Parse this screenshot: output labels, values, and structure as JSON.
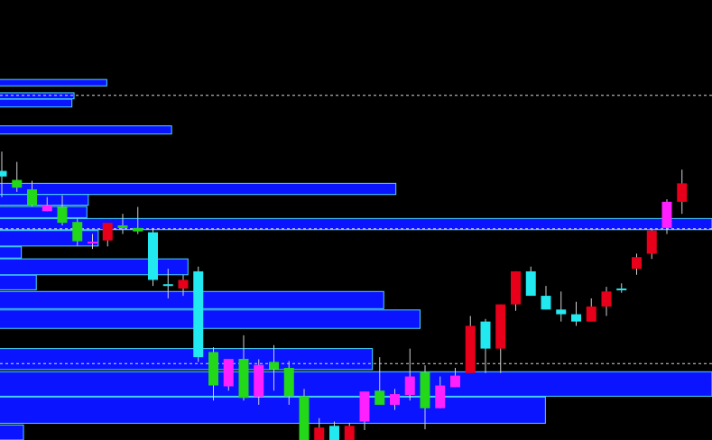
{
  "colors": {
    "background": "#000000",
    "volume_profile_fill": "#0a14ff",
    "volume_profile_edge": "#48d8ff",
    "bull_color": "#e8001a",
    "bull_alt_color": "#ff20ff",
    "bear_color": "#22d818",
    "bear_alt_color": "#22e8f0",
    "wick": "#d0d0d0",
    "level_line": "#ffffff"
  },
  "chart_data": {
    "type": "candlestick",
    "title": "",
    "xlabel": "",
    "ylabel": "",
    "ylim": [
      0,
      100
    ],
    "grid": false,
    "legend": "none",
    "levels": [
      80.3,
      49.2,
      17.8
    ],
    "volume_profile": [
      {
        "low": 82.5,
        "high": 84.0,
        "volume": 15.0
      },
      {
        "low": 79.5,
        "high": 80.9,
        "volume": 10.4
      },
      {
        "low": 77.6,
        "high": 79.4,
        "volume": 10.1
      },
      {
        "low": 71.3,
        "high": 73.2,
        "volume": 24.1
      },
      {
        "low": 57.2,
        "high": 59.8,
        "volume": 55.6
      },
      {
        "low": 54.7,
        "high": 57.2,
        "volume": 12.4
      },
      {
        "low": 51.8,
        "high": 54.4,
        "volume": 12.2
      },
      {
        "low": 49.0,
        "high": 51.6,
        "volume": 100.0
      },
      {
        "low": 45.2,
        "high": 48.8,
        "volume": 13.8
      },
      {
        "low": 42.4,
        "high": 45.0,
        "volume": 3.0
      },
      {
        "low": 38.5,
        "high": 42.2,
        "volume": 26.4
      },
      {
        "low": 35.0,
        "high": 38.4,
        "volume": 5.1
      },
      {
        "low": 30.6,
        "high": 34.6,
        "volume": 53.9
      },
      {
        "low": 26.0,
        "high": 30.3,
        "volume": 59.0
      },
      {
        "low": 16.4,
        "high": 21.3,
        "volume": 52.3
      },
      {
        "low": 10.2,
        "high": 15.9,
        "volume": 100.0
      },
      {
        "low": 3.9,
        "high": 10.0,
        "volume": 76.6
      },
      {
        "low": 0.0,
        "high": 3.5,
        "volume": 3.3
      }
    ],
    "candles": [
      {
        "open": 61.4,
        "high": 67.2,
        "low": 56.6,
        "close": 62.7,
        "color": "bear_alt"
      },
      {
        "open": 58.8,
        "high": 64.8,
        "low": 57.8,
        "close": 60.6,
        "color": "bear"
      },
      {
        "open": 58.4,
        "high": 60.4,
        "low": 54.4,
        "close": 54.7,
        "color": "bear"
      },
      {
        "open": 54.7,
        "high": 56.6,
        "low": 53.3,
        "close": 53.3,
        "color": "bull_alt"
      },
      {
        "open": 54.3,
        "high": 57.0,
        "low": 50.0,
        "close": 50.6,
        "color": "bear"
      },
      {
        "open": 50.8,
        "high": 51.6,
        "low": 45.3,
        "close": 46.3,
        "color": "bear"
      },
      {
        "open": 46.2,
        "high": 48.0,
        "low": 44.5,
        "close": 46.2,
        "color": "bull_alt"
      },
      {
        "open": 46.5,
        "high": 50.4,
        "low": 45.1,
        "close": 50.6,
        "color": "bull"
      },
      {
        "open": 50.0,
        "high": 52.7,
        "low": 48.0,
        "close": 49.4,
        "color": "bear"
      },
      {
        "open": 49.4,
        "high": 54.3,
        "low": 48.0,
        "close": 48.6,
        "color": "bear"
      },
      {
        "open": 48.4,
        "high": 49.4,
        "low": 35.9,
        "close": 37.3,
        "color": "bear_alt"
      },
      {
        "open": 36.3,
        "high": 39.9,
        "low": 33.0,
        "close": 36.3,
        "color": "bear_alt"
      },
      {
        "open": 35.3,
        "high": 38.5,
        "low": 33.6,
        "close": 37.3,
        "color": "bull"
      },
      {
        "open": 39.3,
        "high": 40.4,
        "low": 18.2,
        "close": 19.3,
        "color": "bear_alt"
      },
      {
        "open": 20.5,
        "high": 21.6,
        "low": 9.2,
        "close": 12.7,
        "color": "bear"
      },
      {
        "open": 12.5,
        "high": 18.5,
        "low": 11.5,
        "close": 18.9,
        "color": "bull_alt"
      },
      {
        "open": 18.9,
        "high": 24.4,
        "low": 9.2,
        "close": 9.8,
        "color": "bear"
      },
      {
        "open": 10.1,
        "high": 18.8,
        "low": 8.2,
        "close": 17.5,
        "color": "bull_alt"
      },
      {
        "open": 18.2,
        "high": 22.1,
        "low": 11.5,
        "close": 16.5,
        "color": "bear"
      },
      {
        "open": 16.8,
        "high": 18.4,
        "low": 8.2,
        "close": 10.2,
        "color": "bear"
      },
      {
        "open": 10.2,
        "high": 11.9,
        "low": -2.5,
        "close": -2.5,
        "color": "bear"
      },
      {
        "open": -2.5,
        "high": 5.1,
        "low": -2.5,
        "close": 2.9,
        "color": "bull"
      },
      {
        "open": 3.3,
        "high": 4.3,
        "low": -2.5,
        "close": -2.5,
        "color": "bear_alt"
      },
      {
        "open": -2.5,
        "high": 4.0,
        "low": -2.5,
        "close": 3.3,
        "color": "bull"
      },
      {
        "open": 4.3,
        "high": 11.3,
        "low": 2.3,
        "close": 11.3,
        "color": "bull_alt"
      },
      {
        "open": 11.5,
        "high": 19.3,
        "low": 8.2,
        "close": 8.2,
        "color": "bear"
      },
      {
        "open": 8.2,
        "high": 11.9,
        "low": 7.0,
        "close": 10.7,
        "color": "bull_alt"
      },
      {
        "open": 10.5,
        "high": 21.3,
        "low": 9.2,
        "close": 14.8,
        "color": "bull_alt"
      },
      {
        "open": 15.8,
        "high": 17.4,
        "low": 2.5,
        "close": 7.4,
        "color": "bear"
      },
      {
        "open": 7.4,
        "high": 14.8,
        "low": 7.4,
        "close": 12.7,
        "color": "bull_alt"
      },
      {
        "open": 12.3,
        "high": 16.8,
        "low": 12.3,
        "close": 15.0,
        "color": "bull_alt"
      },
      {
        "open": 15.6,
        "high": 28.9,
        "low": 15.6,
        "close": 26.6,
        "color": "bull"
      },
      {
        "open": 21.3,
        "high": 28.2,
        "low": 15.6,
        "close": 27.6,
        "color": "bear_alt"
      },
      {
        "open": 21.3,
        "high": 31.6,
        "low": 15.6,
        "close": 31.6,
        "color": "bull"
      },
      {
        "open": 31.6,
        "high": 39.3,
        "low": 30.1,
        "close": 39.3,
        "color": "bull"
      },
      {
        "open": 39.3,
        "high": 40.4,
        "low": 33.6,
        "close": 33.6,
        "color": "bear_alt"
      },
      {
        "open": 33.6,
        "high": 35.9,
        "low": 30.4,
        "close": 30.4,
        "color": "bear_alt"
      },
      {
        "open": 30.4,
        "high": 34.6,
        "low": 27.6,
        "close": 29.3,
        "color": "bear_alt"
      },
      {
        "open": 29.3,
        "high": 32.2,
        "low": 26.6,
        "close": 27.6,
        "color": "bear_alt"
      },
      {
        "open": 27.6,
        "high": 33.0,
        "low": 27.6,
        "close": 31.1,
        "color": "bull"
      },
      {
        "open": 31.1,
        "high": 35.7,
        "low": 28.9,
        "close": 34.6,
        "color": "bull"
      },
      {
        "open": 35.3,
        "high": 36.5,
        "low": 34.3,
        "close": 35.3,
        "color": "bear_alt"
      },
      {
        "open": 39.9,
        "high": 43.4,
        "low": 38.5,
        "close": 42.6,
        "color": "bull"
      },
      {
        "open": 43.4,
        "high": 49.0,
        "low": 42.2,
        "close": 48.8,
        "color": "bull"
      },
      {
        "open": 49.4,
        "high": 56.1,
        "low": 48.0,
        "close": 55.5,
        "color": "bull_alt"
      },
      {
        "open": 55.5,
        "high": 63.0,
        "low": 52.7,
        "close": 59.8,
        "color": "bull"
      }
    ]
  }
}
